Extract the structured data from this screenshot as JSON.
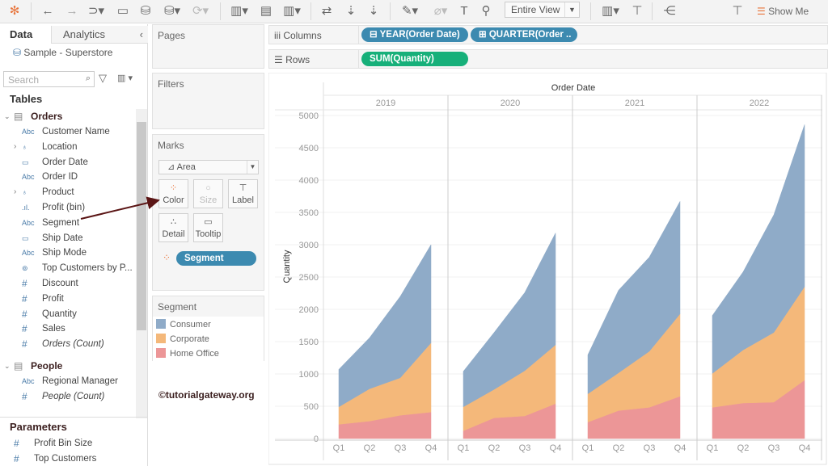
{
  "toolbar": {
    "view_select": "Entire View",
    "show_me": "Show Me"
  },
  "left": {
    "tabs": [
      "Data",
      "Analytics"
    ],
    "datasource": "Sample - Superstore",
    "search_placeholder": "Search",
    "tables_heading": "Tables",
    "orders": {
      "name": "Orders",
      "fields": [
        {
          "icon": "Abc",
          "label": "Customer Name"
        },
        {
          "icon": "hier",
          "label": "Location",
          "expand": true
        },
        {
          "icon": "cal",
          "label": "Order Date"
        },
        {
          "icon": "Abc",
          "label": "Order ID"
        },
        {
          "icon": "hier",
          "label": "Product",
          "expand": true
        },
        {
          "icon": "bin",
          "label": "Profit (bin)"
        },
        {
          "icon": "Abc",
          "label": "Segment"
        },
        {
          "icon": "cal",
          "label": "Ship Date"
        },
        {
          "icon": "Abc",
          "label": "Ship Mode"
        },
        {
          "icon": "set",
          "label": "Top Customers by P..."
        },
        {
          "icon": "#",
          "label": "Discount"
        },
        {
          "icon": "#",
          "label": "Profit"
        },
        {
          "icon": "#",
          "label": "Quantity"
        },
        {
          "icon": "#",
          "label": "Sales"
        },
        {
          "icon": "#",
          "label": "Orders (Count)",
          "italic": true
        }
      ]
    },
    "people": {
      "name": "People",
      "fields": [
        {
          "icon": "Abc",
          "label": "Regional Manager"
        },
        {
          "icon": "#",
          "label": "People (Count)",
          "italic": true
        }
      ]
    },
    "parameters_heading": "Parameters",
    "parameters": [
      "Profit Bin Size",
      "Top Customers"
    ]
  },
  "cards": {
    "pages": "Pages",
    "filters": "Filters",
    "marks": "Marks",
    "mark_type": "Area",
    "buttons": [
      "Color",
      "Size",
      "Label",
      "Detail",
      "Tooltip"
    ],
    "color_pill": "Segment",
    "legend_title": "Segment"
  },
  "shelves": {
    "columns_label": "Columns",
    "rows_label": "Rows",
    "columns_pills": [
      "YEAR(Order Date)",
      "QUARTER(Order .."
    ],
    "rows_pills": [
      "SUM(Quantity)"
    ]
  },
  "watermark": "©tutorialgateway.org",
  "colors": {
    "Consumer": "#8fabc8",
    "Corporate": "#f4b87a",
    "Home Office": "#ec9697",
    "pill_blue": "#3c8ab0",
    "pill_green": "#17b07a"
  },
  "chart_data": {
    "type": "area",
    "stacked": true,
    "title": "Order Date",
    "ylabel": "Quantity",
    "ylim": [
      0,
      5000
    ],
    "yticks": [
      0,
      500,
      1000,
      1500,
      2000,
      2500,
      3000,
      3500,
      4000,
      4500,
      5000
    ],
    "years": [
      "2019",
      "2020",
      "2021",
      "2022"
    ],
    "quarters": [
      "Q1",
      "Q2",
      "Q3",
      "Q4"
    ],
    "legend": [
      "Consumer",
      "Corporate",
      "Home Office"
    ],
    "series": [
      {
        "name": "Home Office",
        "values": [
          [
            220,
            270,
            360,
            410
          ],
          [
            120,
            320,
            350,
            540
          ],
          [
            254,
            433,
            483,
            654
          ],
          [
            483,
            550,
            563,
            904
          ]
        ]
      },
      {
        "name": "Corporate",
        "values": [
          [
            270,
            500,
            580,
            1070
          ],
          [
            370,
            440,
            700,
            910
          ],
          [
            438,
            584,
            867,
            1275
          ],
          [
            525,
            821,
            1079,
            1446
          ]
        ]
      },
      {
        "name": "Consumer",
        "values": [
          [
            580,
            790,
            1260,
            1520
          ],
          [
            550,
            880,
            1210,
            1730
          ],
          [
            604,
            1279,
            1458,
            1742
          ],
          [
            896,
            1208,
            1821,
            2508
          ]
        ]
      }
    ]
  }
}
